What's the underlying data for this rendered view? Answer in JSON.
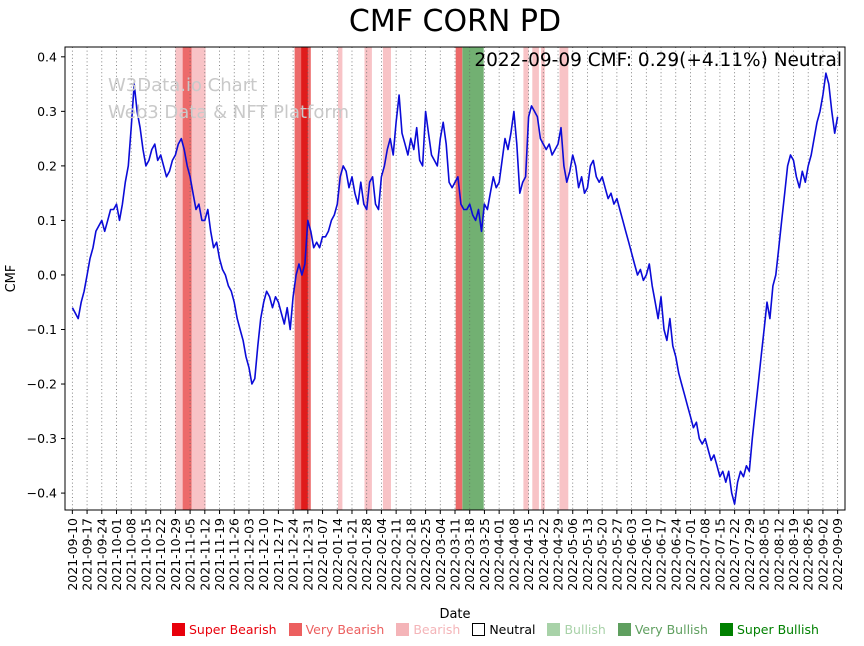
{
  "watermark": {
    "line1": "W3Data.io Chart",
    "line2": "Web3 Data & NFT Platform"
  },
  "chart_data": {
    "type": "line",
    "title": "CMF CORN PD",
    "annotation": "2022-09-09 CMF: 0.29(+4.11%) Neutral",
    "xlabel": "Date",
    "ylabel": "CMF",
    "ylim": [
      -0.431,
      0.418
    ],
    "xlim_weeks": [
      -0.5,
      52.5
    ],
    "grid": "vertical-dotted",
    "line_color": "#0b0bd8",
    "y_ticks": [
      -0.4,
      -0.3,
      -0.2,
      -0.1,
      0.0,
      0.1,
      0.2,
      0.3,
      0.4
    ],
    "y_tick_labels": [
      "−0.4",
      "−0.3",
      "−0.2",
      "−0.1",
      "0.0",
      "0.1",
      "0.2",
      "0.3",
      "0.4"
    ],
    "x_tick_labels": [
      "2021-09-10",
      "2021-09-17",
      "2021-09-24",
      "2021-10-01",
      "2021-10-08",
      "2021-10-15",
      "2021-10-22",
      "2021-10-29",
      "2021-11-05",
      "2021-11-12",
      "2021-11-19",
      "2021-11-26",
      "2021-12-03",
      "2021-12-10",
      "2021-12-17",
      "2021-12-24",
      "2021-12-31",
      "2022-01-07",
      "2022-01-14",
      "2022-01-21",
      "2022-01-28",
      "2022-02-04",
      "2022-02-11",
      "2022-02-18",
      "2022-02-25",
      "2022-03-04",
      "2022-03-11",
      "2022-03-18",
      "2022-03-25",
      "2022-04-01",
      "2022-04-08",
      "2022-04-15",
      "2022-04-22",
      "2022-04-29",
      "2022-05-06",
      "2022-05-13",
      "2022-05-20",
      "2022-05-27",
      "2022-06-03",
      "2022-06-10",
      "2022-06-17",
      "2022-06-24",
      "2022-07-01",
      "2022-07-08",
      "2022-07-15",
      "2022-07-22",
      "2022-07-29",
      "2022-08-05",
      "2022-08-12",
      "2022-08-19",
      "2022-08-26",
      "2022-09-02",
      "2022-09-09"
    ],
    "series": [
      {
        "name": "CMF",
        "x_start": 0,
        "x_step": 0.2,
        "values": [
          -0.06,
          -0.07,
          -0.08,
          -0.05,
          -0.03,
          0,
          0.03,
          0.05,
          0.08,
          0.09,
          0.1,
          0.08,
          0.1,
          0.12,
          0.12,
          0.13,
          0.1,
          0.13,
          0.17,
          0.2,
          0.27,
          0.35,
          0.3,
          0.27,
          0.23,
          0.2,
          0.21,
          0.23,
          0.24,
          0.21,
          0.22,
          0.2,
          0.18,
          0.19,
          0.21,
          0.22,
          0.24,
          0.25,
          0.23,
          0.2,
          0.18,
          0.15,
          0.12,
          0.13,
          0.1,
          0.1,
          0.12,
          0.08,
          0.05,
          0.06,
          0.03,
          0.01,
          0,
          -0.02,
          -0.03,
          -0.05,
          -0.08,
          -0.1,
          -0.12,
          -0.15,
          -0.17,
          -0.2,
          -0.19,
          -0.13,
          -0.08,
          -0.05,
          -0.03,
          -0.04,
          -0.06,
          -0.04,
          -0.05,
          -0.07,
          -0.09,
          -0.06,
          -0.1,
          -0.04,
          0,
          0.02,
          0,
          0.02,
          0.1,
          0.08,
          0.05,
          0.06,
          0.05,
          0.07,
          0.07,
          0.08,
          0.1,
          0.11,
          0.13,
          0.18,
          0.2,
          0.19,
          0.16,
          0.18,
          0.15,
          0.13,
          0.17,
          0.13,
          0.12,
          0.17,
          0.18,
          0.13,
          0.12,
          0.18,
          0.2,
          0.23,
          0.25,
          0.22,
          0.28,
          0.33,
          0.26,
          0.24,
          0.22,
          0.25,
          0.23,
          0.27,
          0.21,
          0.2,
          0.3,
          0.26,
          0.22,
          0.21,
          0.2,
          0.25,
          0.28,
          0.24,
          0.17,
          0.16,
          0.17,
          0.18,
          0.13,
          0.12,
          0.12,
          0.13,
          0.11,
          0.1,
          0.12,
          0.08,
          0.13,
          0.12,
          0.15,
          0.18,
          0.16,
          0.17,
          0.21,
          0.25,
          0.23,
          0.26,
          0.3,
          0.24,
          0.15,
          0.17,
          0.18,
          0.29,
          0.31,
          0.3,
          0.29,
          0.25,
          0.24,
          0.23,
          0.24,
          0.22,
          0.23,
          0.24,
          0.27,
          0.2,
          0.17,
          0.19,
          0.22,
          0.2,
          0.16,
          0.18,
          0.15,
          0.16,
          0.2,
          0.21,
          0.18,
          0.17,
          0.18,
          0.16,
          0.14,
          0.15,
          0.13,
          0.14,
          0.12,
          0.1,
          0.08,
          0.06,
          0.04,
          0.02,
          0,
          0.01,
          -0.01,
          0,
          0.02,
          -0.02,
          -0.05,
          -0.08,
          -0.04,
          -0.1,
          -0.12,
          -0.08,
          -0.13,
          -0.15,
          -0.18,
          -0.2,
          -0.22,
          -0.24,
          -0.26,
          -0.28,
          -0.27,
          -0.3,
          -0.31,
          -0.3,
          -0.32,
          -0.34,
          -0.33,
          -0.35,
          -0.37,
          -0.36,
          -0.38,
          -0.36,
          -0.4,
          -0.42,
          -0.38,
          -0.36,
          -0.37,
          -0.35,
          -0.36,
          -0.3,
          -0.25,
          -0.2,
          -0.15,
          -0.1,
          -0.05,
          -0.08,
          -0.02,
          0,
          0.05,
          0.1,
          0.15,
          0.2,
          0.22,
          0.21,
          0.18,
          0.16,
          0.19,
          0.17,
          0.2,
          0.22,
          0.25,
          0.28,
          0.3,
          0.33,
          0.37,
          0.35,
          0.3,
          0.26,
          0.29
        ]
      }
    ],
    "bands": [
      {
        "from_week": 7.0,
        "to_week": 9.05,
        "category": "bearish"
      },
      {
        "from_week": 7.5,
        "to_week": 8.1,
        "category": "very_bearish"
      },
      {
        "from_week": 15.1,
        "to_week": 16.2,
        "category": "very_bearish"
      },
      {
        "from_week": 15.55,
        "to_week": 16.0,
        "category": "super_bearish"
      },
      {
        "from_week": 18.05,
        "to_week": 18.35,
        "category": "bearish"
      },
      {
        "from_week": 19.85,
        "to_week": 20.35,
        "category": "bearish"
      },
      {
        "from_week": 21.1,
        "to_week": 21.65,
        "category": "bearish"
      },
      {
        "from_week": 26.05,
        "to_week": 26.5,
        "category": "very_bearish"
      },
      {
        "from_week": 26.5,
        "to_week": 27.95,
        "category": "very_bullish"
      },
      {
        "from_week": 30.65,
        "to_week": 31.0,
        "category": "bearish"
      },
      {
        "from_week": 31.25,
        "to_week": 31.7,
        "category": "bearish"
      },
      {
        "from_week": 31.85,
        "to_week": 32.1,
        "category": "bearish"
      },
      {
        "from_week": 33.1,
        "to_week": 33.7,
        "category": "bearish"
      }
    ],
    "band_colors": {
      "super_bearish": "#e01b1b",
      "very_bearish": "#ec6a6a",
      "bearish": "#f8c3c6",
      "neutral": "#ffffff",
      "bullish": "#b9dcb9",
      "very_bullish": "#72b072",
      "super_bullish": "#0f7d0f"
    }
  },
  "legend": {
    "items": [
      {
        "label": "Super Bearish",
        "color": "#e8000b"
      },
      {
        "label": "Very Bearish",
        "color": "#ec5f5f"
      },
      {
        "label": "Bearish",
        "color": "#f4b4b8"
      },
      {
        "label": "Neutral",
        "color": "#000000",
        "swatch": "#ffffff",
        "border": "#000000"
      },
      {
        "label": "Bullish",
        "color": "#a8d2a8"
      },
      {
        "label": "Very Bullish",
        "color": "#5f9f5f"
      },
      {
        "label": "Super Bullish",
        "color": "#008000"
      }
    ]
  }
}
